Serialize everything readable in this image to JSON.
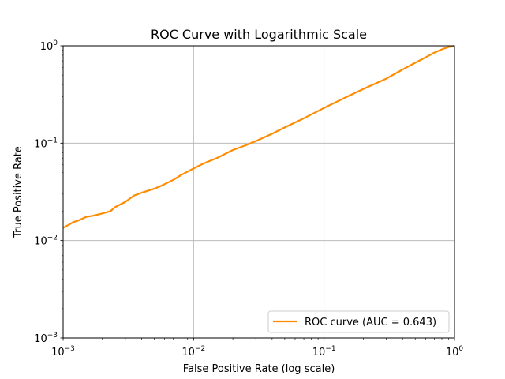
{
  "chart_data": {
    "type": "line",
    "title": "ROC Curve with Logarithmic Scale",
    "xlabel": "False Positive Rate (log scale)",
    "ylabel": "True Positive Rate",
    "xscale": "log",
    "yscale": "log",
    "xlim": [
      0.001,
      1
    ],
    "ylim": [
      0.001,
      1
    ],
    "xticks": [
      0.001,
      0.01,
      0.1,
      1
    ],
    "yticks": [
      0.001,
      0.01,
      0.1,
      1
    ],
    "xtick_labels": [
      {
        "base": "10",
        "exp": "−3"
      },
      {
        "base": "10",
        "exp": "−2"
      },
      {
        "base": "10",
        "exp": "−1"
      },
      {
        "base": "10",
        "exp": "0"
      }
    ],
    "ytick_labels": [
      {
        "base": "10",
        "exp": "−3"
      },
      {
        "base": "10",
        "exp": "−2"
      },
      {
        "base": "10",
        "exp": "−1"
      },
      {
        "base": "10",
        "exp": "0"
      }
    ],
    "grid": true,
    "legend_position": "lower-right",
    "series": [
      {
        "name": "ROC curve (AUC = 0.643)",
        "color": "#ff8c00",
        "x": [
          0.001,
          0.0011,
          0.0012,
          0.0013,
          0.0015,
          0.0017,
          0.002,
          0.0023,
          0.0025,
          0.003,
          0.0035,
          0.004,
          0.005,
          0.006,
          0.007,
          0.008,
          0.01,
          0.012,
          0.015,
          0.02,
          0.025,
          0.03,
          0.04,
          0.05,
          0.07,
          0.1,
          0.15,
          0.2,
          0.3,
          0.4,
          0.5,
          0.6,
          0.7,
          0.8,
          0.9,
          1.0
        ],
        "y": [
          0.0135,
          0.0145,
          0.0155,
          0.016,
          0.0175,
          0.018,
          0.019,
          0.02,
          0.022,
          0.025,
          0.029,
          0.031,
          0.034,
          0.038,
          0.042,
          0.047,
          0.055,
          0.062,
          0.07,
          0.085,
          0.095,
          0.105,
          0.125,
          0.145,
          0.18,
          0.23,
          0.3,
          0.36,
          0.46,
          0.57,
          0.67,
          0.76,
          0.85,
          0.92,
          0.97,
          1.0
        ]
      }
    ]
  }
}
